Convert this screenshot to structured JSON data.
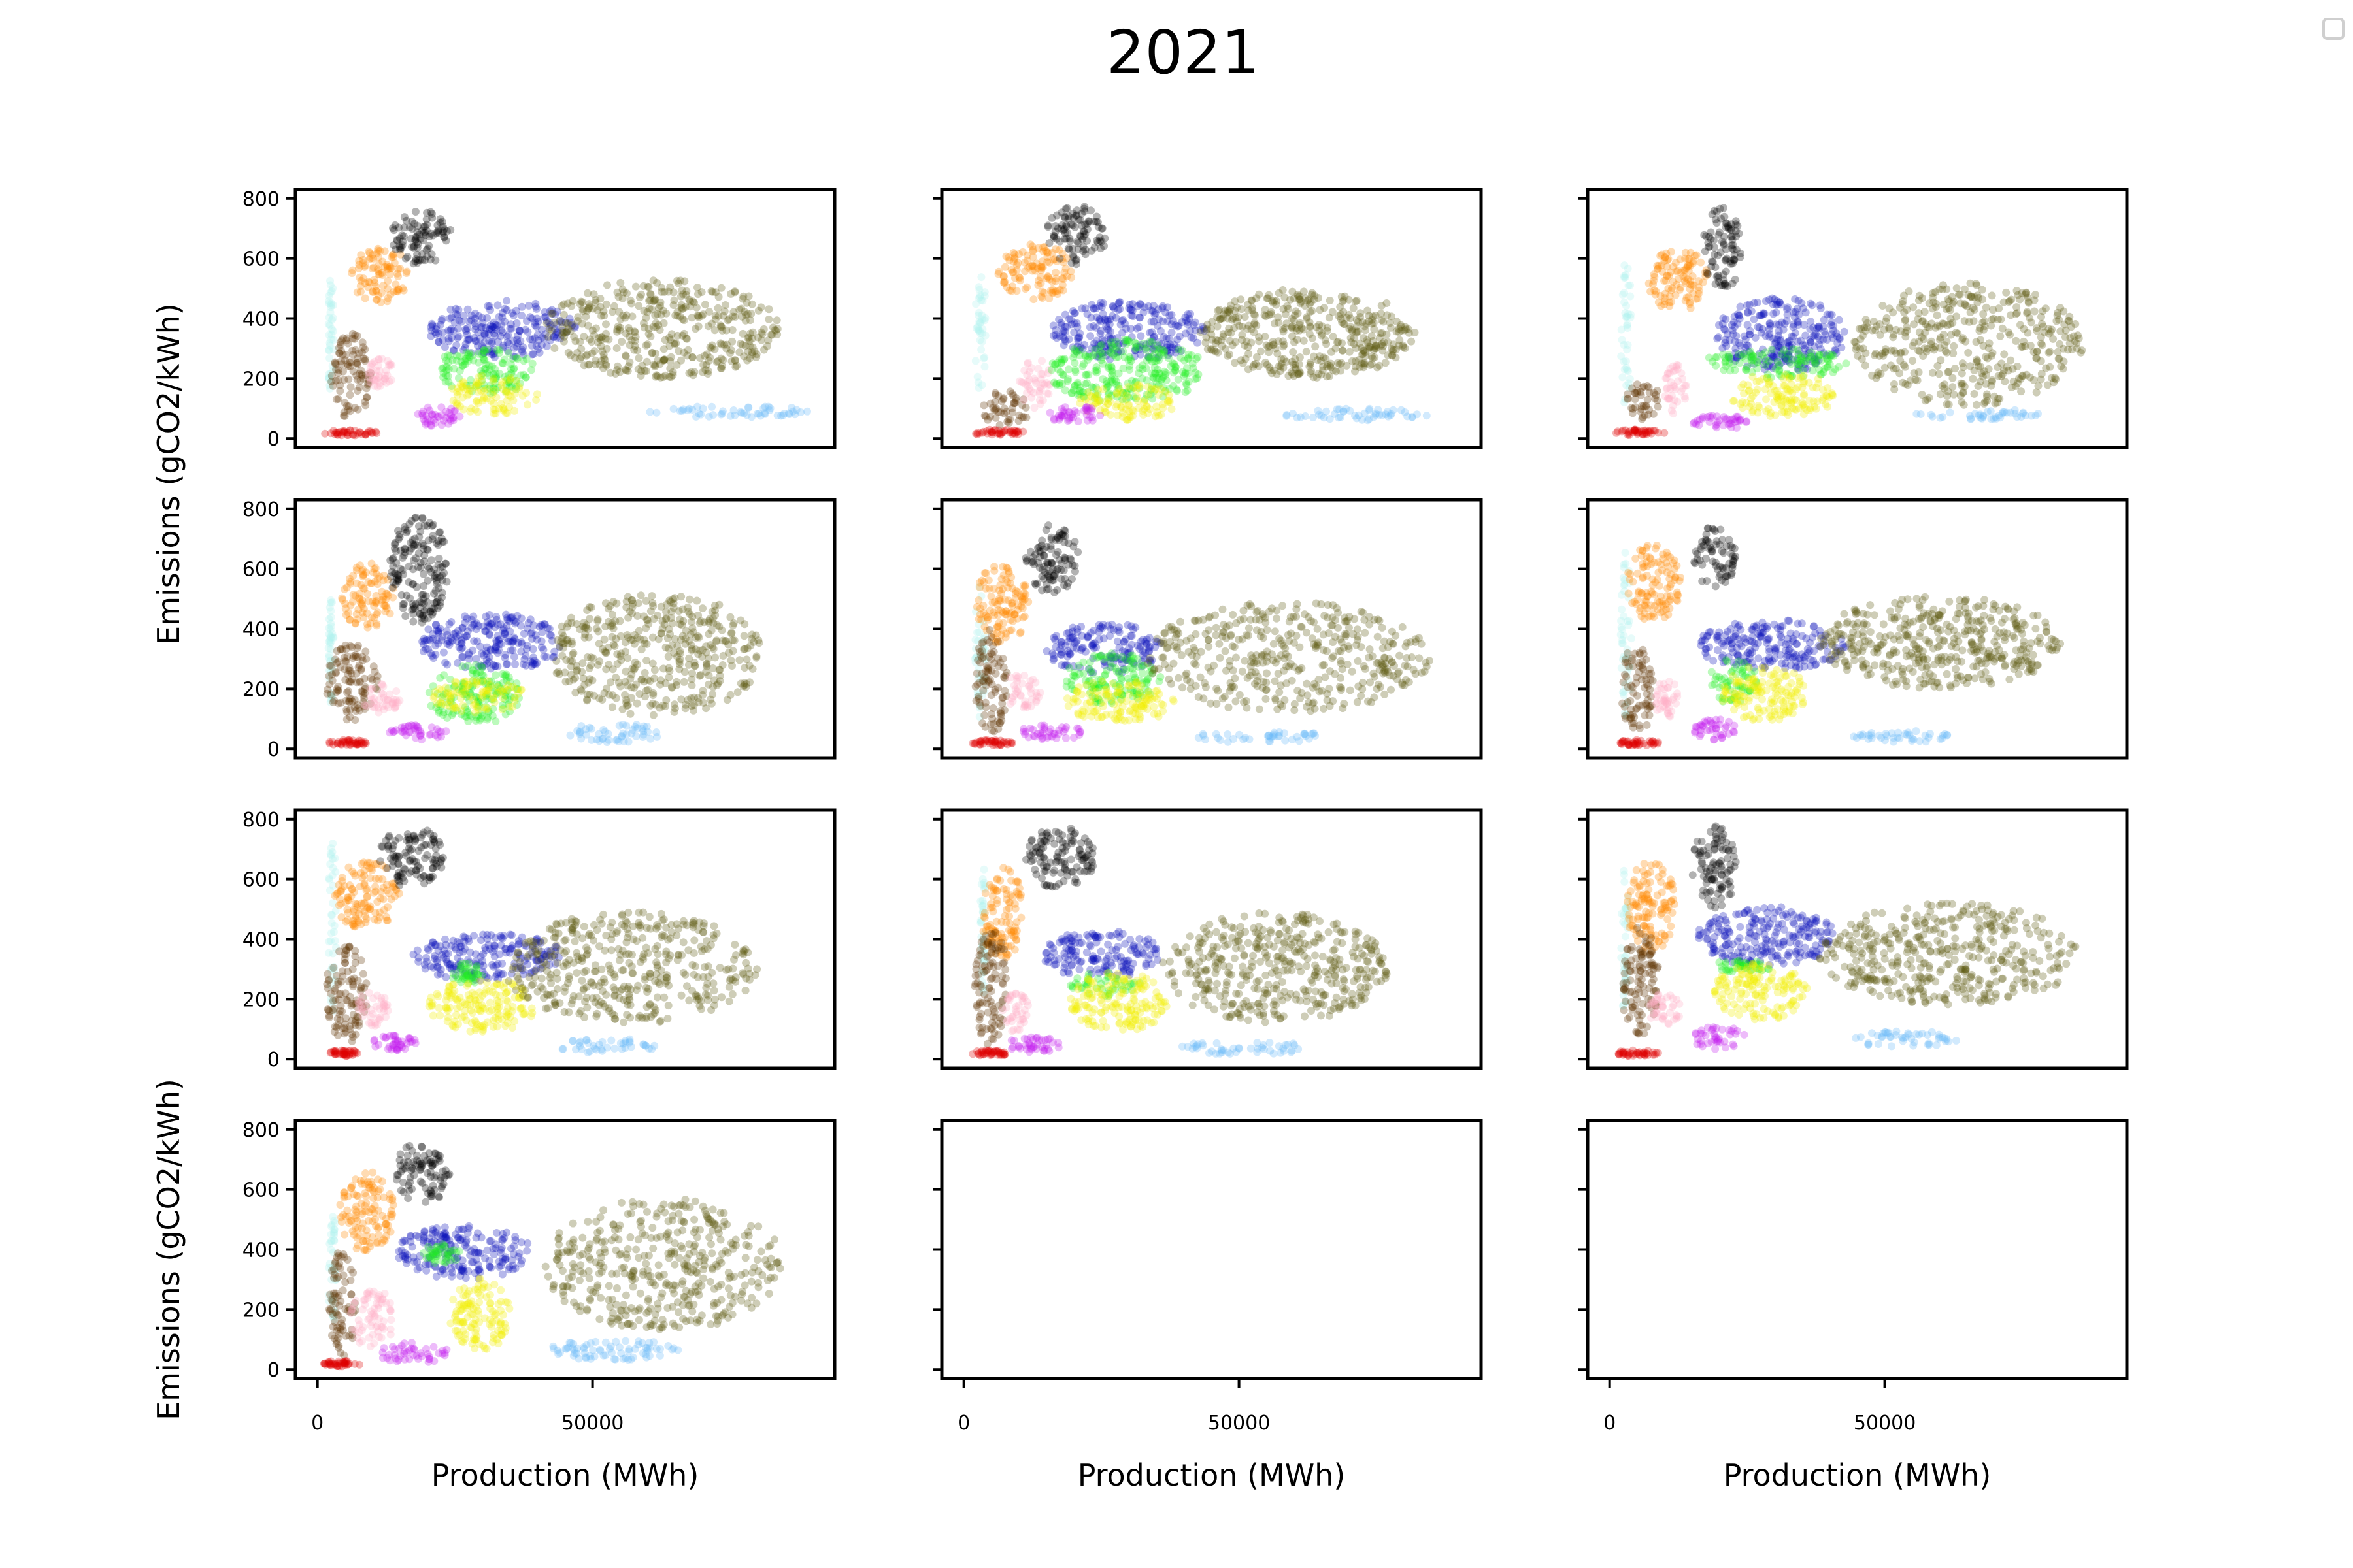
{
  "figure": {
    "title": "2021",
    "ylabel": "Emissions (gCO2/kWh)",
    "xlabel": "Production (MWh)"
  },
  "colors": {
    "cyan": "#aef2f0",
    "orange": "#ff8800",
    "black": "#000000",
    "brown": "#5c3300",
    "pink": "#ffb0c8",
    "blue": "#0b12b8",
    "green": "#22ee22",
    "yellow": "#f2f000",
    "olive": "#5e5a10",
    "lightblue": "#6ab8f7",
    "magenta": "#c51ef0",
    "red": "#dd0000"
  },
  "chart_data": {
    "type": "scatter",
    "grid": false,
    "layout": "4x3",
    "xlim": [
      -4000,
      94000
    ],
    "ylim": [
      -30,
      830
    ],
    "xticks": [
      0,
      50000
    ],
    "yticks": [
      0,
      200,
      400,
      600,
      800
    ],
    "xticklabels": [
      "0",
      "50000"
    ],
    "yticklabels": [
      "0",
      "200",
      "400",
      "600",
      "800"
    ],
    "series_order": [
      "cyan",
      "orange",
      "black",
      "brown",
      "pink",
      "blue",
      "green",
      "yellow",
      "olive",
      "lightblue",
      "magenta",
      "red"
    ],
    "panels": [
      {
        "clusters": {
          "cyan": [
            2000,
            3000,
            100,
            600
          ],
          "orange": [
            6000,
            17000,
            450,
            640
          ],
          "black": [
            13000,
            25000,
            580,
            760
          ],
          "brown": [
            2500,
            10000,
            60,
            350
          ],
          "pink": [
            9000,
            14000,
            170,
            270
          ],
          "blue": [
            20000,
            47000,
            270,
            460
          ],
          "green": [
            21000,
            40000,
            150,
            300
          ],
          "yellow": [
            24000,
            40000,
            80,
            210
          ],
          "olive": [
            41000,
            84000,
            200,
            530
          ],
          "lightblue": [
            60000,
            90000,
            70,
            110
          ],
          "magenta": [
            18000,
            26000,
            40,
            110
          ],
          "red": [
            1000,
            11000,
            10,
            30
          ]
        }
      },
      {
        "clusters": {
          "cyan": [
            2000,
            4000,
            150,
            590
          ],
          "orange": [
            6000,
            20000,
            460,
            650
          ],
          "black": [
            15000,
            26000,
            580,
            780
          ],
          "brown": [
            3000,
            12000,
            40,
            160
          ],
          "pink": [
            10000,
            16000,
            100,
            270
          ],
          "blue": [
            16000,
            44000,
            260,
            460
          ],
          "green": [
            15000,
            44000,
            120,
            330
          ],
          "yellow": [
            21000,
            39000,
            60,
            180
          ],
          "olive": [
            43000,
            82000,
            200,
            500
          ],
          "lightblue": [
            56000,
            85000,
            60,
            100
          ],
          "magenta": [
            15000,
            25000,
            50,
            110
          ],
          "red": [
            1000,
            11000,
            10,
            30
          ]
        }
      },
      {
        "clusters": {
          "cyan": [
            2000,
            4000,
            100,
            590
          ],
          "orange": [
            7000,
            18000,
            420,
            640
          ],
          "black": [
            17000,
            24000,
            490,
            780
          ],
          "brown": [
            3000,
            9000,
            60,
            200
          ],
          "pink": [
            10000,
            14000,
            80,
            250
          ],
          "blue": [
            19000,
            43000,
            220,
            470
          ],
          "green": [
            17000,
            44000,
            200,
            300
          ],
          "yellow": [
            22000,
            41000,
            70,
            220
          ],
          "olive": [
            44000,
            86000,
            110,
            520
          ],
          "lightblue": [
            55000,
            78000,
            60,
            100
          ],
          "magenta": [
            15000,
            25000,
            30,
            80
          ],
          "red": [
            1000,
            10000,
            10,
            30
          ]
        }
      },
      {
        "clusters": {
          "cyan": [
            2000,
            3000,
            150,
            500
          ],
          "orange": [
            4000,
            14000,
            400,
            620
          ],
          "black": [
            13000,
            24000,
            420,
            780
          ],
          "brown": [
            1500,
            11000,
            90,
            350
          ],
          "pink": [
            8000,
            15000,
            110,
            220
          ],
          "blue": [
            18000,
            45000,
            260,
            450
          ],
          "green": [
            20000,
            37000,
            80,
            280
          ],
          "yellow": [
            20000,
            38000,
            120,
            230
          ],
          "olive": [
            42000,
            81000,
            110,
            520
          ],
          "lightblue": [
            45000,
            63000,
            20,
            85
          ],
          "magenta": [
            13000,
            24000,
            30,
            80
          ],
          "red": [
            2000,
            9000,
            10,
            30
          ]
        }
      },
      {
        "clusters": {
          "cyan": [
            2000,
            4000,
            100,
            560
          ],
          "orange": [
            2000,
            12000,
            350,
            620
          ],
          "black": [
            11000,
            21000,
            520,
            750
          ],
          "brown": [
            2000,
            8000,
            50,
            400
          ],
          "pink": [
            7000,
            14000,
            130,
            250
          ],
          "blue": [
            15000,
            36000,
            250,
            420
          ],
          "green": [
            18000,
            36000,
            150,
            320
          ],
          "yellow": [
            18000,
            39000,
            90,
            230
          ],
          "olive": [
            33000,
            85000,
            120,
            490
          ],
          "lightblue": [
            42000,
            66000,
            20,
            60
          ],
          "magenta": [
            10000,
            22000,
            30,
            80
          ],
          "red": [
            1000,
            9000,
            10,
            30
          ]
        }
      },
      {
        "clusters": {
          "cyan": [
            2000,
            4000,
            100,
            660
          ],
          "orange": [
            3000,
            13000,
            420,
            680
          ],
          "black": [
            15000,
            23000,
            540,
            740
          ],
          "brown": [
            2000,
            8000,
            50,
            350
          ],
          "pink": [
            8000,
            13000,
            100,
            230
          ],
          "blue": [
            16000,
            43000,
            260,
            430
          ],
          "green": [
            18000,
            27000,
            150,
            300
          ],
          "yellow": [
            20000,
            36000,
            90,
            280
          ],
          "olive": [
            38000,
            82000,
            200,
            510
          ],
          "lightblue": [
            44000,
            62000,
            20,
            60
          ],
          "magenta": [
            15000,
            23000,
            30,
            100
          ],
          "red": [
            1000,
            9000,
            10,
            30
          ]
        }
      },
      {
        "clusters": {
          "cyan": [
            2000,
            3500,
            150,
            750
          ],
          "orange": [
            3000,
            15000,
            430,
            660
          ],
          "black": [
            11000,
            23000,
            570,
            780
          ],
          "brown": [
            1500,
            9000,
            50,
            380
          ],
          "pink": [
            7000,
            13000,
            110,
            230
          ],
          "blue": [
            17000,
            45000,
            260,
            420
          ],
          "green": [
            24000,
            30000,
            250,
            320
          ],
          "yellow": [
            20000,
            40000,
            90,
            270
          ],
          "olive": [
            34000,
            80000,
            120,
            490
          ],
          "lightblue": [
            43000,
            62000,
            20,
            70
          ],
          "magenta": [
            10000,
            18000,
            30,
            80
          ],
          "red": [
            2000,
            8000,
            10,
            30
          ]
        }
      },
      {
        "clusters": {
          "cyan": [
            3000,
            4000,
            200,
            660
          ],
          "orange": [
            3000,
            11000,
            330,
            640
          ],
          "black": [
            11000,
            24000,
            570,
            780
          ],
          "brown": [
            2000,
            8000,
            40,
            440
          ],
          "pink": [
            7000,
            12000,
            90,
            220
          ],
          "blue": [
            14000,
            36000,
            270,
            430
          ],
          "green": [
            19000,
            32000,
            210,
            290
          ],
          "yellow": [
            19000,
            37000,
            90,
            290
          ],
          "olive": [
            36000,
            77000,
            120,
            490
          ],
          "lightblue": [
            39000,
            63000,
            15,
            60
          ],
          "magenta": [
            8000,
            18000,
            20,
            80
          ],
          "red": [
            1000,
            8000,
            10,
            30
          ]
        }
      },
      {
        "clusters": {
          "cyan": [
            2000,
            3500,
            150,
            640
          ],
          "orange": [
            3000,
            12000,
            350,
            660
          ],
          "black": [
            15000,
            23000,
            500,
            780
          ],
          "brown": [
            2000,
            9000,
            80,
            440
          ],
          "pink": [
            7000,
            13000,
            110,
            220
          ],
          "blue": [
            16000,
            41000,
            310,
            510
          ],
          "green": [
            18000,
            30000,
            290,
            330
          ],
          "yellow": [
            19000,
            36000,
            130,
            320
          ],
          "olive": [
            38000,
            86000,
            180,
            520
          ],
          "lightblue": [
            44000,
            64000,
            40,
            95
          ],
          "magenta": [
            14000,
            25000,
            30,
            110
          ],
          "red": [
            1000,
            9000,
            10,
            30
          ]
        }
      },
      {
        "clusters": {
          "cyan": [
            2000,
            3500,
            150,
            530
          ],
          "orange": [
            4000,
            14000,
            390,
            660
          ],
          "black": [
            14000,
            24000,
            550,
            760
          ],
          "brown": [
            2000,
            7000,
            40,
            400
          ],
          "pink": [
            6000,
            14000,
            70,
            270
          ],
          "blue": [
            14000,
            39000,
            300,
            480
          ],
          "green": [
            19000,
            26000,
            350,
            420
          ],
          "yellow": [
            24000,
            35000,
            60,
            310
          ],
          "olive": [
            41000,
            85000,
            130,
            570
          ],
          "lightblue": [
            42000,
            66000,
            30,
            100
          ],
          "magenta": [
            9000,
            24000,
            20,
            90
          ],
          "red": [
            1000,
            8000,
            10,
            30
          ]
        }
      },
      {
        "clusters": {}
      },
      {
        "clusters": {}
      }
    ]
  }
}
